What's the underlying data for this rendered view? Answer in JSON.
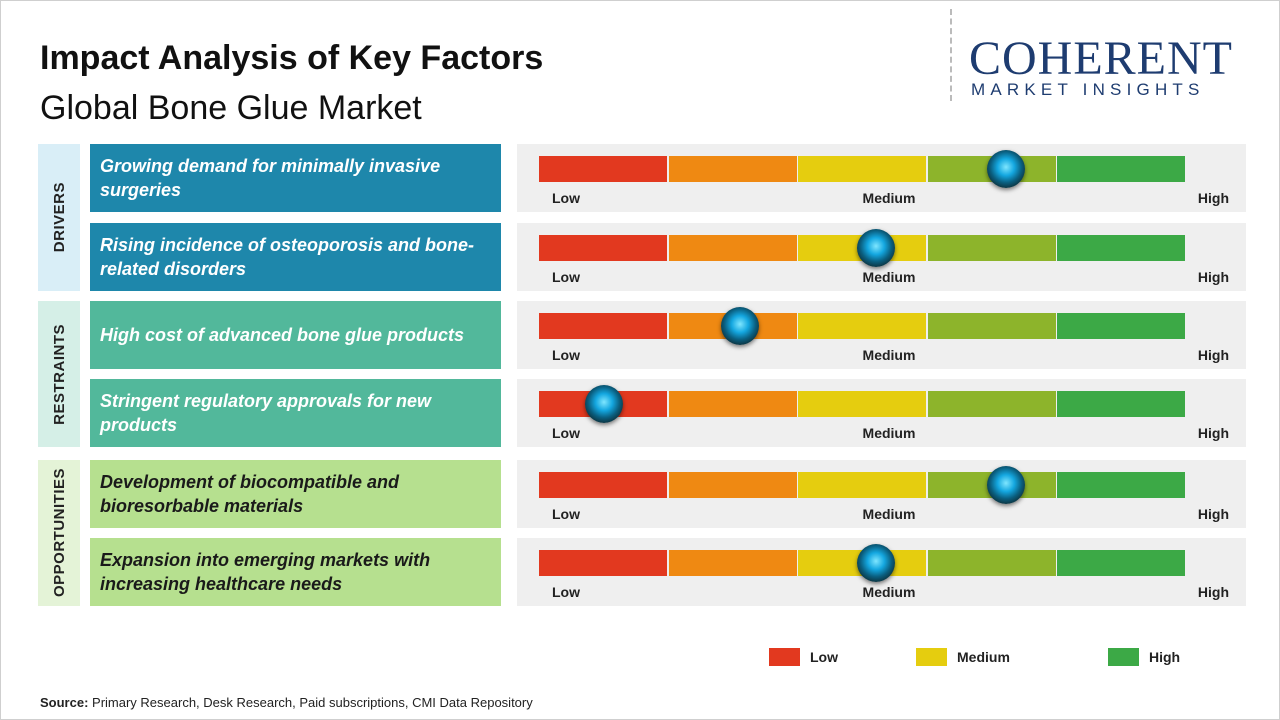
{
  "header": {
    "title": "Impact Analysis of Key Factors",
    "subtitle": "Global Bone Glue Market"
  },
  "logo": {
    "name": "COHERENT",
    "tagline": "MARKET INSIGHTS"
  },
  "scale": {
    "colors": [
      "#e2391f",
      "#ef8912",
      "#e5cd0f",
      "#8db42b",
      "#3ca946"
    ],
    "labels": [
      "Low",
      "Medium",
      "High"
    ]
  },
  "groups": [
    {
      "name": "DRIVERS",
      "factors": [
        {
          "text": "Growing demand for minimally invasive surgeries",
          "impact": 3.6
        },
        {
          "text": "Rising incidence of osteoporosis and bone-related disorders",
          "impact": 2.6
        }
      ]
    },
    {
      "name": "RESTRAINTS",
      "factors": [
        {
          "text": "High cost of advanced bone glue products",
          "impact": 1.55
        },
        {
          "text": "Stringent regulatory approvals for new products",
          "impact": 0.5
        }
      ]
    },
    {
      "name": "OPPORTUNITIES",
      "factors": [
        {
          "text": "Development of biocompatible and bioresorbable materials",
          "impact": 3.6
        },
        {
          "text": "Expansion into emerging markets with increasing healthcare needs",
          "impact": 2.6
        }
      ]
    }
  ],
  "legend": [
    {
      "label": "Low",
      "color": "#e2391f"
    },
    {
      "label": "Medium",
      "color": "#e5cd0f"
    },
    {
      "label": "High",
      "color": "#3ca946"
    }
  ],
  "source": {
    "label": "Source:",
    "text": "Primary Research, Desk Research, Paid subscriptions, CMI Data Repository"
  }
}
